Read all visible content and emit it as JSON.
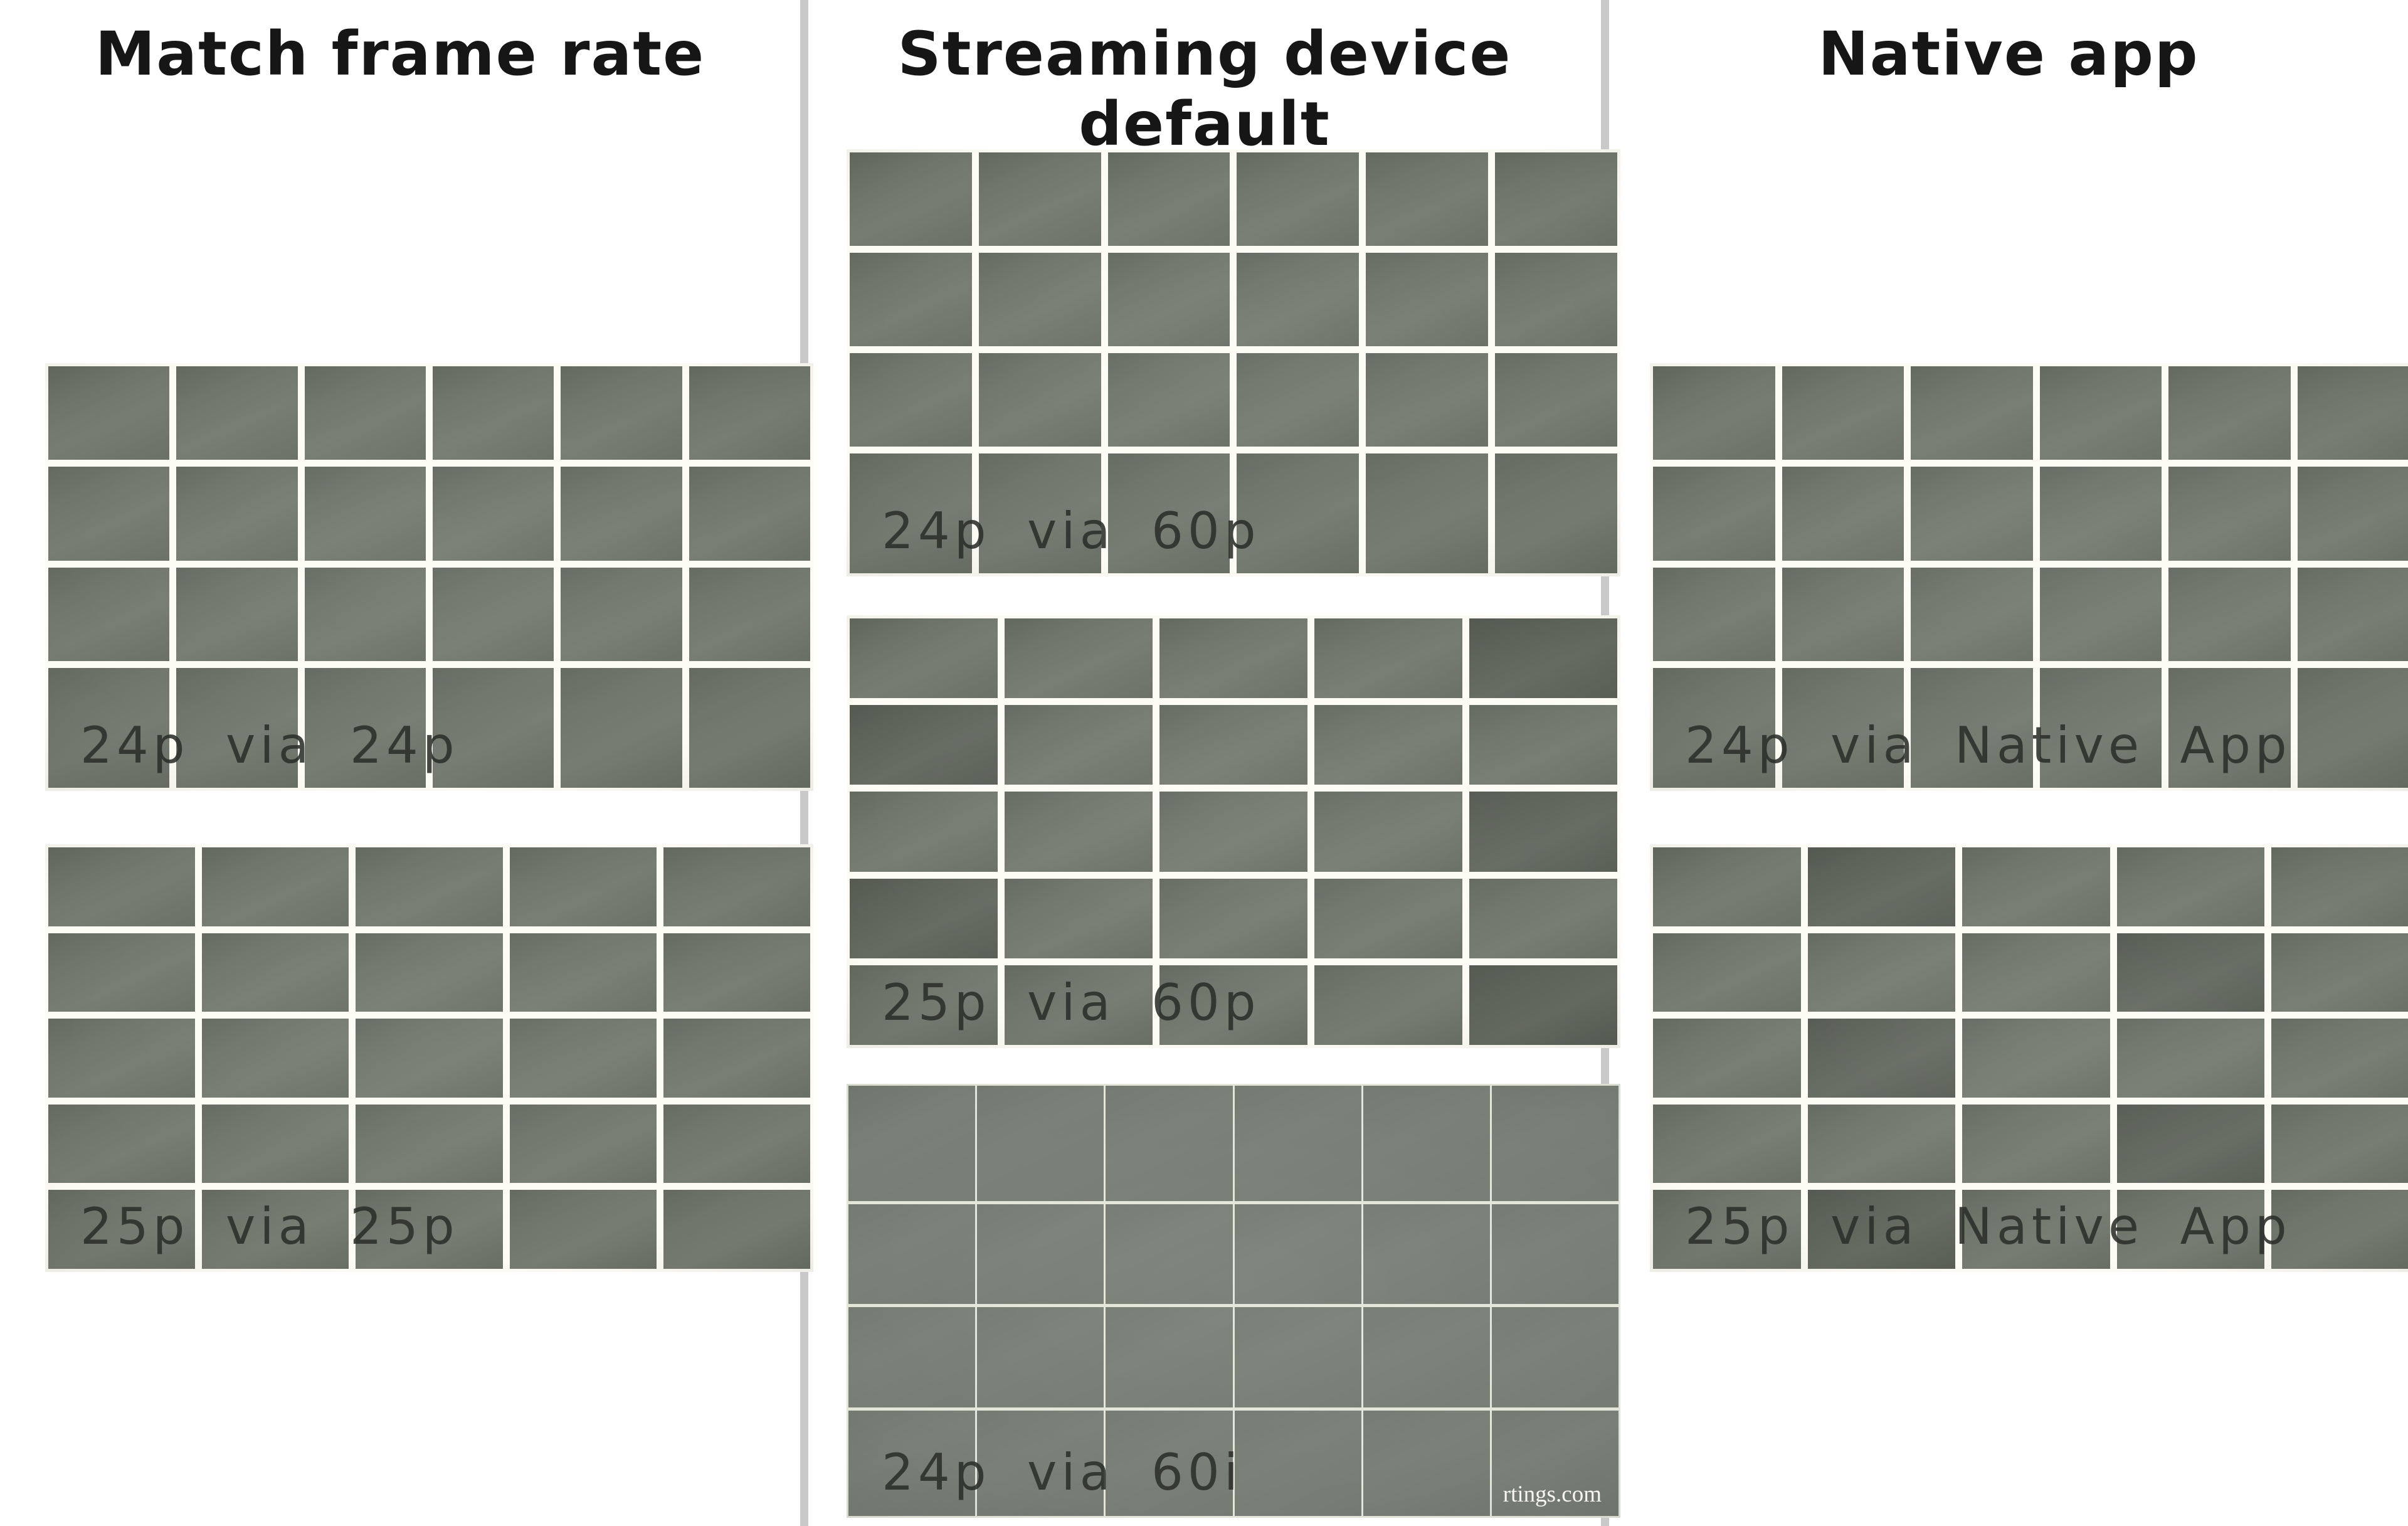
{
  "columns": [
    {
      "title": "Match frame rate"
    },
    {
      "title": "Streaming device default"
    },
    {
      "title": "Native app"
    }
  ],
  "photos": [
    {
      "label": "24p via 24p",
      "cols": 6,
      "rows": 4,
      "line": "thick",
      "dark_cells": []
    },
    {
      "label": "25p via 25p",
      "cols": 5,
      "rows": 5,
      "line": "thick",
      "dark_cells": []
    },
    {
      "label": "24p via 60p",
      "cols": 6,
      "rows": 4,
      "line": "thick",
      "dark_cells": []
    },
    {
      "label": "25p via 60p",
      "cols": 5,
      "rows": 5,
      "line": "thick",
      "dark_cells": [
        [
          1,
          5
        ],
        [
          2,
          1
        ],
        [
          3,
          5
        ],
        [
          4,
          1
        ],
        [
          5,
          5
        ]
      ]
    },
    {
      "label": "24p via 60i",
      "cols": 6,
      "rows": 4,
      "line": "thin",
      "dark_cells": [],
      "watermark": "rtings.com"
    },
    {
      "label": "24p via Native App",
      "cols": 6,
      "rows": 4,
      "line": "thick",
      "dark_cells": []
    },
    {
      "label": "25p via Native App",
      "cols": 5,
      "rows": 5,
      "line": "thick",
      "dark_cells": [
        [
          1,
          2
        ],
        [
          2,
          4
        ],
        [
          3,
          2
        ],
        [
          4,
          4
        ],
        [
          5,
          2
        ]
      ]
    }
  ],
  "colors": {
    "background": "#ffffff",
    "divider": "#c9c9c9",
    "title": "#161616",
    "label": "#2c2f2a",
    "cell": "#71776c",
    "cell_dark": "#60655b",
    "line": "#fdfcf4",
    "thin_cell": "#7a8077",
    "thin_line": "#e4e6da",
    "watermark": "#f7f7ef"
  }
}
